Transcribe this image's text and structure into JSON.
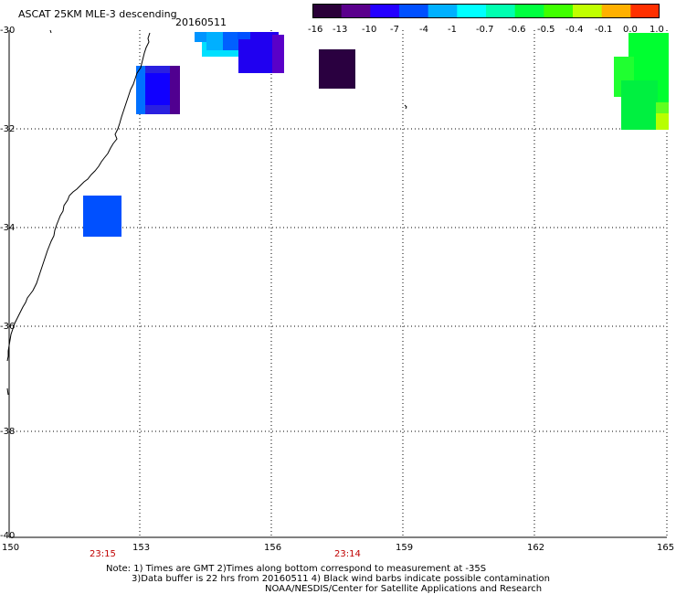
{
  "header": {
    "title": "ASCAT 25KM MLE-3 descending",
    "date": "20160511"
  },
  "colorbar": {
    "ticks": [
      "-16",
      "-13",
      "-10",
      "-7",
      "-4",
      "-1",
      "-0.7",
      "-0.6",
      "-0.5",
      "-0.4",
      "-0.1",
      "0.0",
      "1.0"
    ],
    "colors": [
      "#2a0038",
      "#5a008c",
      "#2400ff",
      "#0050ff",
      "#00b0ff",
      "#00ffff",
      "#00ffb0",
      "#00ff40",
      "#40ff00",
      "#c0ff00",
      "#ffb000",
      "#ff3000"
    ]
  },
  "map": {
    "lon_range": [
      150,
      165
    ],
    "lat_range": [
      -40,
      -30
    ],
    "x_ticks": [
      "150",
      "153",
      "156",
      "159",
      "162",
      "165"
    ],
    "y_ticks": [
      "-30",
      "-32",
      "-34",
      "-36",
      "-38",
      "-40"
    ],
    "time_labels": [
      "23:15",
      "23:14"
    ]
  },
  "notes": {
    "line1": "Note: 1) Times are GMT 2)Times along bottom correspond to measurement at -35S",
    "line2": "3)Data buffer is 22 hrs from 20160511 4) Black wind barbs indicate possible contamination",
    "line3": "NOAA/NESDIS/Center for Satellite Applications and Research"
  }
}
